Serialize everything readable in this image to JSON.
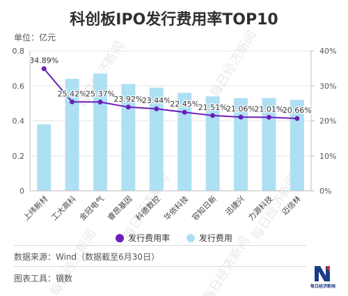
{
  "unit_label": "单位：亿元",
  "legend": {
    "rate_label": "发行费用率",
    "fee_label": "发行费用",
    "rate_color": "#6a1fb8",
    "fee_color": "#aee0f4"
  },
  "source_note": "数据来源：Wind（数据截至6月30日）",
  "tool_note": "图表工具：镝数",
  "publisher_logo_text": "每日经济新闻",
  "watermark_text": "每日经济新闻",
  "chart_data": {
    "type": "bar",
    "title": "科创板IPO发行费用率TOP10",
    "categories": [
      "上纬新材",
      "工大高科",
      "金冠电气",
      "睿昂基因",
      "科德数控",
      "华依科技",
      "容知日新",
      "迅捷兴",
      "力源科技",
      "迈信林"
    ],
    "series": [
      {
        "name": "发行费用",
        "axis": "left",
        "type": "bar",
        "color": "#aee0f4",
        "values": [
          0.38,
          0.64,
          0.67,
          0.61,
          0.59,
          0.56,
          0.54,
          0.53,
          0.53,
          0.52
        ]
      },
      {
        "name": "发行费用率",
        "axis": "right",
        "type": "line",
        "color": "#6a1fb8",
        "values": [
          34.89,
          25.42,
          25.37,
          23.92,
          23.44,
          22.45,
          21.51,
          21.06,
          21.01,
          20.66
        ],
        "labels": [
          "34.89%",
          "25.42%",
          "25.37%",
          "23.92%",
          "23.44%",
          "22.45%",
          "21.51%",
          "21.06%",
          "21.01%",
          "20.66%"
        ]
      }
    ],
    "y_left": {
      "min": 0,
      "max": 0.8,
      "ticks": [
        0,
        0.2,
        0.4,
        0.6,
        0.8
      ],
      "tick_labels": [
        "0",
        "0.2",
        "0.4",
        "0.6",
        "0.8"
      ]
    },
    "y_right": {
      "min": 0,
      "max": 40,
      "ticks": [
        0,
        10,
        20,
        30,
        40
      ],
      "tick_labels": [
        "0%",
        "10%",
        "20%",
        "30%",
        "40%"
      ]
    },
    "grid": true,
    "legend_position": "bottom"
  }
}
